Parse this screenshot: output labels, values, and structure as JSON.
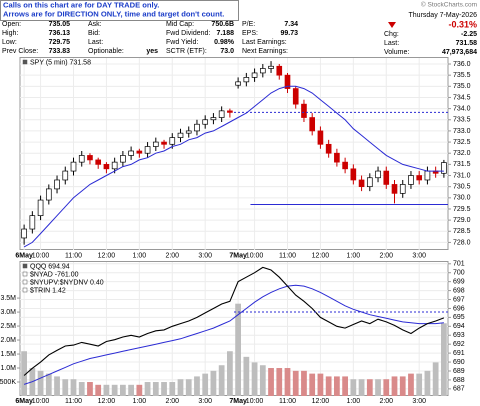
{
  "header": {
    "note": [
      "Calls on this chart are for DAY TRADE only.",
      "Arrows are for DIRECTION ONLY, time and target don't count."
    ],
    "credit": "© StockCharts.com",
    "quote": {
      "columns": [
        [
          {
            "label": "Open:",
            "value": "735.05"
          },
          {
            "label": "High:",
            "value": "736.13"
          },
          {
            "label": "Low:",
            "value": "729.75"
          },
          {
            "label": "Prev Close:",
            "value": "733.83"
          }
        ],
        [
          {
            "label": "Ask:"
          },
          {
            "label": "Bid:"
          },
          {
            "label": "Last:"
          },
          {
            "label": "Optionable:",
            "value": "yes"
          }
        ],
        [
          {
            "label": "Mid Cap:",
            "value": "750.6B"
          },
          {
            "label": "Fwd Dividend:",
            "value": "7.188"
          },
          {
            "label": "Fwd Yield:",
            "value": "0.98%"
          },
          {
            "label": "SCTR (ETF):",
            "value": "73.0"
          }
        ],
        [
          {
            "label": "P/E:",
            "value": "7.34"
          },
          {
            "label": "EPS:",
            "value": "99.73"
          },
          {
            "label": "Last Earnings:"
          },
          {
            "label": "Next Earnings:"
          }
        ]
      ],
      "date": "Thursday 7-May-2026",
      "change": "-0.31%",
      "summary": [
        {
          "label": "Chg:",
          "value": "-2.25"
        },
        {
          "label": "Last:",
          "value": "731.58"
        },
        {
          "label": "Volume:",
          "value": "47,973,684"
        }
      ]
    }
  },
  "chart_data": [
    {
      "type": "candlestick",
      "legend": "SPY (5 min) 731.58",
      "categories": [
        "6May",
        null,
        "10:00",
        null,
        null,
        null,
        "11:00",
        null,
        null,
        null,
        "12:00",
        null,
        null,
        null,
        "1:00",
        null,
        null,
        null,
        "2:00",
        null,
        null,
        null,
        "3:00",
        null,
        null,
        null,
        "7May",
        null,
        "10:00",
        null,
        null,
        null,
        "11:00",
        null,
        null,
        null,
        "12:00",
        null,
        null,
        null,
        "1:00",
        null,
        null,
        null,
        "2:00",
        null,
        null,
        null,
        "3:00",
        null,
        null,
        null
      ],
      "open": [
        728.2,
        728.6,
        729.2,
        729.9,
        730.4,
        730.8,
        731.2,
        731.6,
        731.9,
        731.7,
        731.5,
        731.3,
        731.6,
        731.9,
        732.1,
        732.0,
        732.3,
        732.5,
        732.4,
        732.7,
        732.9,
        733.0,
        733.3,
        733.5,
        733.6,
        733.9,
        735.05,
        735.2,
        735.4,
        735.6,
        735.8,
        735.9,
        735.5,
        734.9,
        734.2,
        733.6,
        733.0,
        732.4,
        732.0,
        731.6,
        731.3,
        730.8,
        730.5,
        730.9,
        731.2,
        730.6,
        730.2,
        730.6,
        731.0,
        730.8,
        731.2,
        731.1
      ],
      "high": [
        728.8,
        729.4,
        730.1,
        730.6,
        731.0,
        731.4,
        731.8,
        732.1,
        732.0,
        731.8,
        731.6,
        731.8,
        732.1,
        732.3,
        732.2,
        732.5,
        732.7,
        732.6,
        732.9,
        733.1,
        733.2,
        733.5,
        733.7,
        733.8,
        734.1,
        734.0,
        735.4,
        735.6,
        735.8,
        736.0,
        736.13,
        736.0,
        735.6,
        735.0,
        734.4,
        733.8,
        733.2,
        732.6,
        732.2,
        731.8,
        731.5,
        731.0,
        731.1,
        731.4,
        731.4,
        730.8,
        730.8,
        731.2,
        731.2,
        731.4,
        731.4,
        731.7
      ],
      "low": [
        727.9,
        728.4,
        729.0,
        729.7,
        730.2,
        730.6,
        731.0,
        731.4,
        731.5,
        731.3,
        731.1,
        731.1,
        731.4,
        731.7,
        731.8,
        731.8,
        732.1,
        732.2,
        732.2,
        732.5,
        732.7,
        732.8,
        733.1,
        733.3,
        733.4,
        733.6,
        734.9,
        735.0,
        735.2,
        735.4,
        735.6,
        735.3,
        734.7,
        734.0,
        733.4,
        732.8,
        732.2,
        731.8,
        731.4,
        731.1,
        730.6,
        730.3,
        730.3,
        730.7,
        730.4,
        729.75,
        730.0,
        730.4,
        730.6,
        730.6,
        730.9,
        730.9
      ],
      "close": [
        728.6,
        729.2,
        729.9,
        730.4,
        730.8,
        731.2,
        731.6,
        731.9,
        731.7,
        731.5,
        731.3,
        731.6,
        731.9,
        732.1,
        732.0,
        732.3,
        732.5,
        732.4,
        732.7,
        732.9,
        733.0,
        733.3,
        733.5,
        733.6,
        733.9,
        733.83,
        735.2,
        735.4,
        735.6,
        735.8,
        735.9,
        735.5,
        734.9,
        734.2,
        733.6,
        733.0,
        732.4,
        732.0,
        731.6,
        731.3,
        730.8,
        730.5,
        730.9,
        731.2,
        730.6,
        730.2,
        730.6,
        731.0,
        730.8,
        731.2,
        731.1,
        731.58
      ],
      "up_color": "#000000",
      "down_color": "#cc0000",
      "series": [
        {
          "values": [
            727.8,
            728.0,
            728.4,
            728.8,
            729.2,
            729.6,
            730.0,
            730.3,
            730.6,
            730.8,
            731.0,
            731.2,
            731.4,
            731.5,
            731.7,
            731.8,
            732.0,
            732.1,
            732.3,
            732.4,
            732.6,
            732.7,
            732.9,
            733.0,
            733.2,
            733.4,
            733.6,
            733.8,
            734.1,
            734.4,
            734.7,
            734.9,
            735.0,
            735.0,
            734.9,
            734.7,
            734.4,
            734.1,
            733.8,
            733.5,
            733.1,
            732.8,
            732.5,
            732.2,
            731.9,
            731.7,
            731.5,
            731.4,
            731.3,
            731.2,
            731.2,
            731.2
          ],
          "color": "#2b2bd4"
        }
      ],
      "hlines": [
        {
          "value": 733.83,
          "dashed": true,
          "from": 26,
          "color": "#2b2bd4"
        },
        {
          "value": 729.7,
          "dashed": false,
          "from": 28,
          "color": "#2b2bd4"
        }
      ],
      "ylim": [
        727.66,
        736.27
      ],
      "yticks": [
        {
          "value": 728,
          "label": "728.0"
        },
        728.5,
        {
          "value": 729,
          "label": "729.0"
        },
        729.5,
        {
          "value": 730,
          "label": "730.0"
        },
        730.5,
        {
          "value": 731,
          "label": "731.0"
        },
        731.5,
        {
          "value": 732,
          "label": "732.0"
        },
        732.5,
        {
          "value": 733,
          "label": "733.0"
        },
        733.5,
        {
          "value": 734,
          "label": "734.0"
        },
        734.5,
        {
          "value": 735,
          "label": "735.0"
        },
        735.5,
        {
          "value": 736,
          "label": "736.0"
        }
      ],
      "grid": true
    },
    {
      "type": "line",
      "legend": [
        "QQQ 694.94",
        "$NYAD -761.00",
        "$NYUPV:$NYDNV 0.40",
        "$TRIN 1.42"
      ],
      "categories": [
        "6May",
        null,
        "10:00",
        null,
        null,
        null,
        "11:00",
        null,
        null,
        null,
        "12:00",
        null,
        null,
        null,
        "1:00",
        null,
        null,
        null,
        "2:00",
        null,
        null,
        null,
        "3:00",
        null,
        null,
        null,
        "7May",
        null,
        "10:00",
        null,
        null,
        null,
        "11:00",
        null,
        null,
        null,
        "12:00",
        null,
        null,
        null,
        "1:00",
        null,
        null,
        null,
        "2:00",
        null,
        null,
        null,
        "3:00",
        null,
        null,
        null
      ],
      "series": [
        {
          "values": [
            688.5,
            689.3,
            690.0,
            690.8,
            691.3,
            691.8,
            691.9,
            692.2,
            692.0,
            691.8,
            692.3,
            692.5,
            692.8,
            693.0,
            692.8,
            693.2,
            693.5,
            693.6,
            694.0,
            694.3,
            694.6,
            695.0,
            695.5,
            696.0,
            696.5,
            696.8,
            699.0,
            699.5,
            700.0,
            700.6,
            700.3,
            699.5,
            698.5,
            697.5,
            696.8,
            696.0,
            695.0,
            694.5,
            694.0,
            693.8,
            694.2,
            694.6,
            694.3,
            694.8,
            694.5,
            694.1,
            693.6,
            693.2,
            693.8,
            694.3,
            694.6,
            694.94
          ],
          "color": "#000000"
        },
        {
          "values": [
            687.5,
            687.8,
            688.2,
            688.6,
            689.0,
            689.4,
            689.8,
            690.1,
            690.4,
            690.6,
            690.8,
            691.0,
            691.2,
            691.4,
            691.6,
            691.8,
            692.0,
            692.2,
            692.4,
            692.6,
            692.9,
            693.2,
            693.5,
            693.8,
            694.2,
            694.6,
            695.3,
            696.0,
            696.7,
            697.3,
            697.8,
            698.2,
            698.5,
            698.6,
            698.5,
            698.2,
            697.8,
            697.3,
            696.8,
            696.3,
            695.9,
            695.6,
            695.3,
            695.1,
            694.9,
            694.7,
            694.5,
            694.4,
            694.3,
            694.3,
            694.3,
            694.4
          ],
          "color": "#2b2bd4"
        },
        {
          "type": "bar",
          "axis": "y2",
          "up_color": "#bdbdbd",
          "down_color": "#d98a8a",
          "values": [
            1600000,
            1000000,
            900000,
            800000,
            700000,
            600000,
            600000,
            500000,
            500000,
            400000,
            400000,
            400000,
            400000,
            400000,
            400000,
            500000,
            500000,
            500000,
            500000,
            600000,
            600000,
            700000,
            800000,
            900000,
            1100000,
            1600000,
            3300000,
            1400000,
            1200000,
            1100000,
            1000000,
            1000000,
            1000000,
            900000,
            900000,
            800000,
            800000,
            700000,
            700000,
            700000,
            600000,
            600000,
            600000,
            600000,
            600000,
            700000,
            700000,
            800000,
            800000,
            900000,
            1200000,
            2600000
          ]
        }
      ],
      "hlines": [
        {
          "value": 695.6,
          "dashed": true,
          "from": 26,
          "color": "#2b2bd4"
        }
      ],
      "ylim": [
        686.2,
        701.2
      ],
      "yticks": [
        687,
        688,
        689,
        690,
        691,
        692,
        693,
        694,
        695,
        696,
        697,
        698,
        699,
        700,
        701
      ],
      "y2lim": [
        0,
        4790000
      ],
      "y2ticks": [
        {
          "value": 500000,
          "label": "500K"
        },
        {
          "value": 1000000,
          "label": "1.0M"
        },
        {
          "value": 1500000,
          "label": "1.5M"
        },
        {
          "value": 2000000,
          "label": "2.0M"
        },
        {
          "value": 2500000,
          "label": "2.5M"
        },
        {
          "value": 3000000,
          "label": "3.0M"
        },
        {
          "value": 3500000,
          "label": "3.5M"
        }
      ],
      "grid": true
    }
  ]
}
